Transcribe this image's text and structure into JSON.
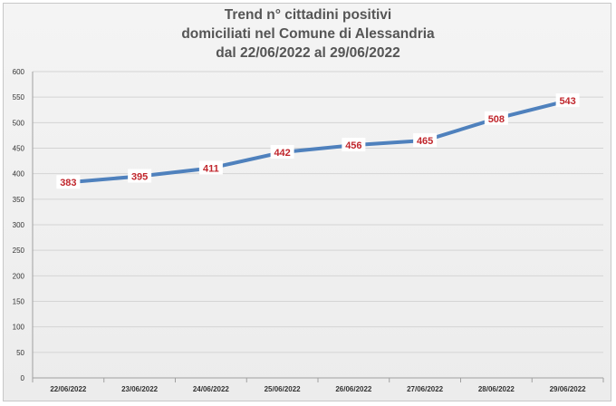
{
  "chart_data": {
    "type": "line",
    "title_lines": [
      "Trend n° cittadini positivi",
      "domiciliati nel Comune di Alessandria",
      "dal 22/06/2022 al 29/06/2022"
    ],
    "categories": [
      "22/06/2022",
      "23/06/2022",
      "24/06/2022",
      "25/06/2022",
      "26/06/2022",
      "27/06/2022",
      "28/06/2022",
      "29/06/2022"
    ],
    "values": [
      383,
      395,
      411,
      442,
      456,
      465,
      508,
      543
    ],
    "xlabel": "",
    "ylabel": "",
    "ylim": [
      0,
      600
    ],
    "yticks": [
      0,
      50,
      100,
      150,
      200,
      250,
      300,
      350,
      400,
      450,
      500,
      550,
      600
    ],
    "grid": true,
    "legend": "none",
    "colors": {
      "line": "#4f81bd",
      "data_label": "#c0262c",
      "grid": "#d4d4d4"
    }
  }
}
